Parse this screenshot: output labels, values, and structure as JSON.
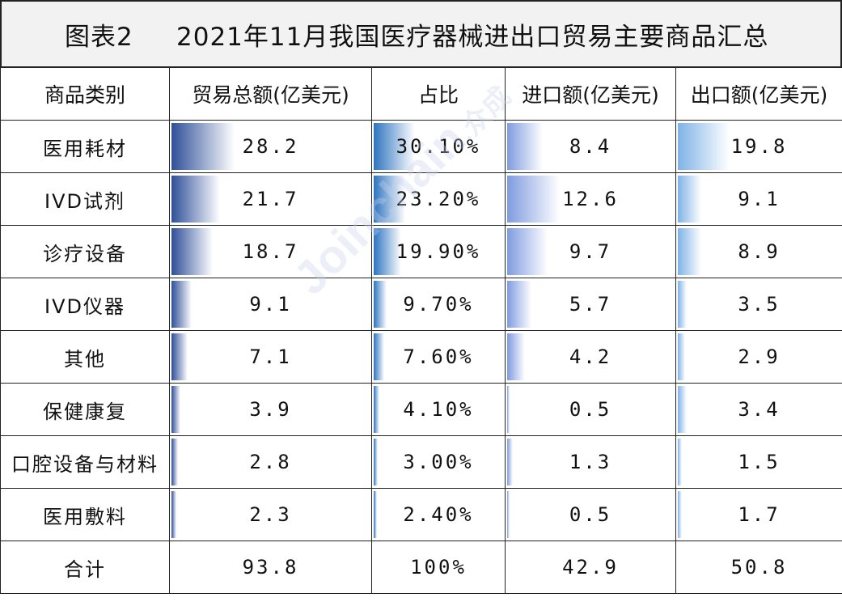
{
  "title": {
    "label": "图表2",
    "text": "2021年11月我国医疗器械进出口贸易主要商品汇总"
  },
  "watermark": {
    "main": "Joinchain",
    "suffix": ".众成"
  },
  "columns": [
    "商品类别",
    "贸易总额(亿美元)",
    "占比",
    "进口额(亿美元)",
    "出口额(亿美元)"
  ],
  "rows": [
    {
      "category": "医用耗材",
      "total": "28.2",
      "share": "30.10%",
      "import": "8.4",
      "export": "19.8"
    },
    {
      "category": "IVD试剂",
      "total": "21.7",
      "share": "23.20%",
      "import": "12.6",
      "export": "9.1"
    },
    {
      "category": "诊疗设备",
      "total": "18.7",
      "share": "19.90%",
      "import": "9.7",
      "export": "8.9"
    },
    {
      "category": "IVD仪器",
      "total": "9.1",
      "share": "9.70%",
      "import": "5.7",
      "export": "3.5"
    },
    {
      "category": "其他",
      "total": "7.1",
      "share": "7.60%",
      "import": "4.2",
      "export": "2.9"
    },
    {
      "category": "保健康复",
      "total": "3.9",
      "share": "4.10%",
      "import": "0.5",
      "export": "3.4"
    },
    {
      "category": "口腔设备与材料",
      "total": "2.8",
      "share": "3.00%",
      "import": "1.3",
      "export": "1.5"
    },
    {
      "category": "医用敷料",
      "total": "2.3",
      "share": "2.40%",
      "import": "0.5",
      "export": "1.7"
    }
  ],
  "total_row": {
    "category": "合计",
    "total": "93.8",
    "share": "100%",
    "import": "42.9",
    "export": "50.8"
  },
  "chart_data": {
    "type": "table",
    "categories": [
      "医用耗材",
      "IVD试剂",
      "诊疗设备",
      "IVD仪器",
      "其他",
      "保健康复",
      "口腔设备与材料",
      "医用敷料"
    ],
    "series": [
      {
        "name": "贸易总额(亿美元)",
        "values": [
          28.2,
          21.7,
          18.7,
          9.1,
          7.1,
          3.9,
          2.8,
          2.3
        ]
      },
      {
        "name": "占比",
        "values": [
          30.1,
          23.2,
          19.9,
          9.7,
          7.6,
          4.1,
          3.0,
          2.4
        ]
      },
      {
        "name": "进口额(亿美元)",
        "values": [
          8.4,
          12.6,
          9.7,
          5.7,
          4.2,
          0.5,
          1.3,
          0.5
        ]
      },
      {
        "name": "出口额(亿美元)",
        "values": [
          19.8,
          9.1,
          8.9,
          3.5,
          2.9,
          3.4,
          1.5,
          1.7
        ]
      }
    ],
    "bar_colors": {
      "total": [
        "#2f4f98",
        "#ffffff"
      ],
      "share": [
        "#2e74c0",
        "#ffffff"
      ],
      "import": [
        "#7f9be0",
        "#ffffff"
      ],
      "export": [
        "#7fb3e6",
        "#ffffff"
      ]
    }
  }
}
